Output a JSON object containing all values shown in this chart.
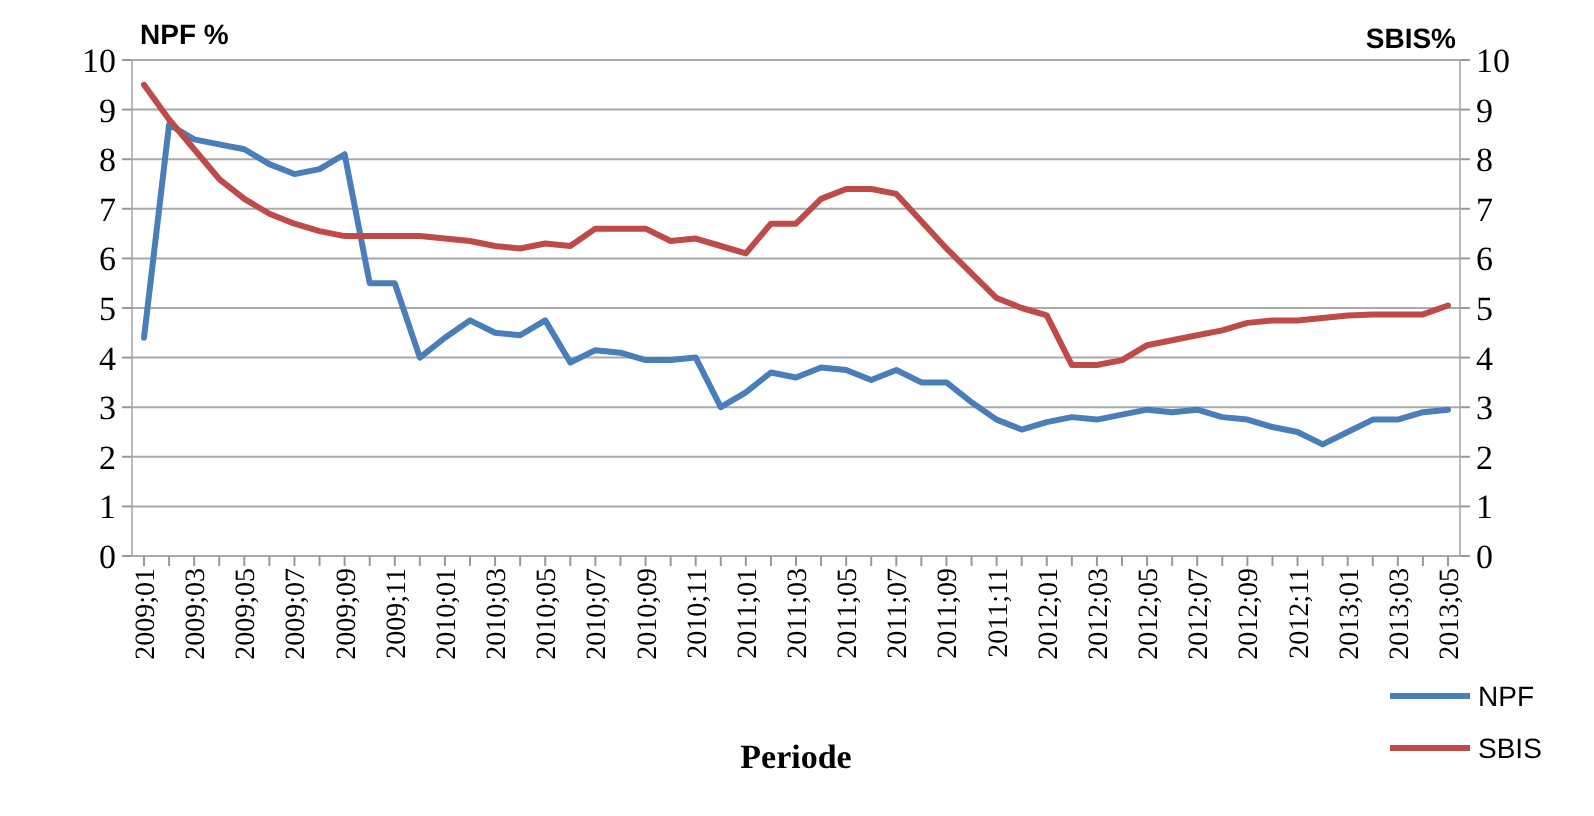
{
  "chart_data": {
    "type": "line",
    "ylabel": "NPF %",
    "y2label": "SBIS%",
    "xlabel": "Periode",
    "categories": [
      "2009;01",
      null,
      "2009;03",
      null,
      "2009;05",
      null,
      "2009;07",
      null,
      "2009;09",
      null,
      "2009;11",
      null,
      "2010;01",
      null,
      "2010;03",
      null,
      "2010;05",
      null,
      "2010;07",
      null,
      "2010;09",
      null,
      "2010;11",
      null,
      "2011;01",
      null,
      "2011;03",
      null,
      "2011;05",
      null,
      "2011;07",
      null,
      "2011;09",
      null,
      "2011;11",
      null,
      "2012;01",
      null,
      "2012;03",
      null,
      "2012;05",
      null,
      "2012;07",
      null,
      "2012;09",
      null,
      "2012;11",
      null,
      "2013;01",
      null,
      "2013;03",
      null,
      "2013;05"
    ],
    "series": [
      {
        "name": "NPF",
        "color": "#4a7ebb",
        "values": [
          4.4,
          8.7,
          8.4,
          8.3,
          8.2,
          7.9,
          7.7,
          7.8,
          8.1,
          5.5,
          5.5,
          4.0,
          4.4,
          4.75,
          4.5,
          4.45,
          4.75,
          3.9,
          4.15,
          4.1,
          3.95,
          3.95,
          4.0,
          3.0,
          3.3,
          3.7,
          3.6,
          3.8,
          3.75,
          3.55,
          3.75,
          3.5,
          3.5,
          3.1,
          2.75,
          2.55,
          2.7,
          2.8,
          2.75,
          2.85,
          2.95,
          2.9,
          2.95,
          2.8,
          2.75,
          2.6,
          2.5,
          2.25,
          2.5,
          2.75,
          2.75,
          2.9,
          2.95
        ]
      },
      {
        "name": "SBIS",
        "color": "#be4b48",
        "axis": "y2",
        "values": [
          9.5,
          8.8,
          8.2,
          7.6,
          7.2,
          6.9,
          6.7,
          6.55,
          6.45,
          6.45,
          6.45,
          6.45,
          6.4,
          6.35,
          6.25,
          6.2,
          6.3,
          6.25,
          6.6,
          6.6,
          6.6,
          6.35,
          6.4,
          6.25,
          6.1,
          6.7,
          6.7,
          7.2,
          7.4,
          7.4,
          7.3,
          6.75,
          6.2,
          5.7,
          5.2,
          5.0,
          4.85,
          3.85,
          3.85,
          3.95,
          4.25,
          4.35,
          4.45,
          4.55,
          4.7,
          4.75,
          4.75,
          4.8,
          4.85,
          4.87,
          4.87,
          4.87,
          5.05
        ]
      }
    ],
    "ylim": [
      0,
      10
    ],
    "yticks": [
      0,
      1,
      2,
      3,
      4,
      5,
      6,
      7,
      8,
      9,
      10
    ],
    "y2lim": [
      0,
      10
    ],
    "y2ticks": [
      0,
      1,
      2,
      3,
      4,
      5,
      6,
      7,
      8,
      9,
      10
    ],
    "grid": "y",
    "legend": "bottom right",
    "line_style": "solid"
  }
}
